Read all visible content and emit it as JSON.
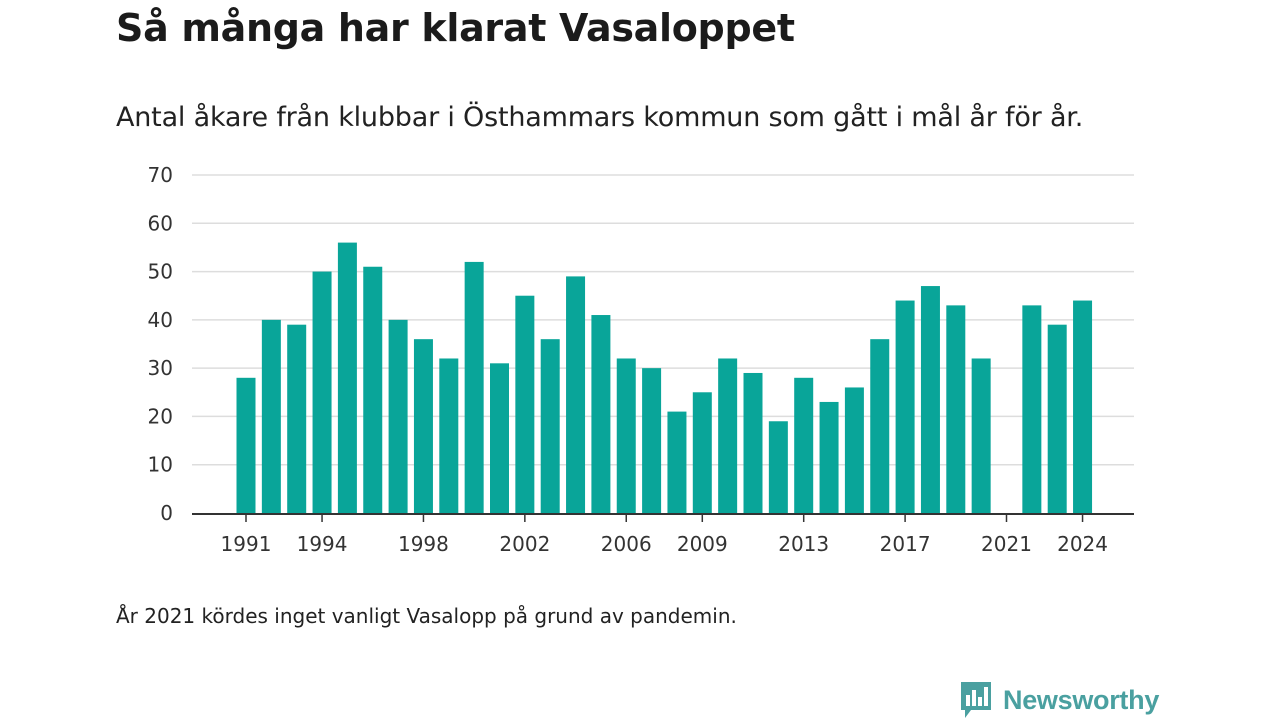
{
  "header": {
    "title": "Så många har klarat Vasaloppet",
    "subtitle": "Antal åkare från klubbar i Östhammars kommun som gått i mål år för år."
  },
  "footnote": "År 2021 kördes inget vanligt Vasalopp på grund av pandemin.",
  "brand": {
    "name": "Newsworthy",
    "icon": "newsworthy-bar-chart-logo-icon",
    "color": "#4aa0a0"
  },
  "colors": {
    "bar": "#09a599",
    "grid": "#dddddd",
    "axis": "#333333"
  },
  "chart_data": {
    "type": "bar",
    "title": "Så många har klarat Vasaloppet",
    "subtitle": "Antal åkare från klubbar i Östhammars kommun som gått i mål år för år.",
    "xlabel": "",
    "ylabel": "",
    "ylim": [
      0,
      70
    ],
    "yticks": [
      0,
      10,
      20,
      30,
      40,
      50,
      60,
      70
    ],
    "xticks": [
      1991,
      1994,
      1998,
      2002,
      2006,
      2009,
      2013,
      2017,
      2021,
      2024
    ],
    "grid": true,
    "legend": "none",
    "categories": [
      1991,
      1992,
      1993,
      1994,
      1995,
      1996,
      1997,
      1998,
      1999,
      2000,
      2001,
      2002,
      2003,
      2004,
      2005,
      2006,
      2007,
      2008,
      2009,
      2010,
      2011,
      2012,
      2013,
      2014,
      2015,
      2016,
      2017,
      2018,
      2019,
      2020,
      2021,
      2022,
      2023,
      2024
    ],
    "values": [
      28,
      40,
      39,
      50,
      56,
      51,
      40,
      36,
      32,
      52,
      31,
      45,
      36,
      49,
      41,
      32,
      30,
      21,
      25,
      32,
      29,
      19,
      28,
      23,
      26,
      36,
      44,
      47,
      43,
      32,
      0,
      43,
      39,
      44
    ]
  }
}
